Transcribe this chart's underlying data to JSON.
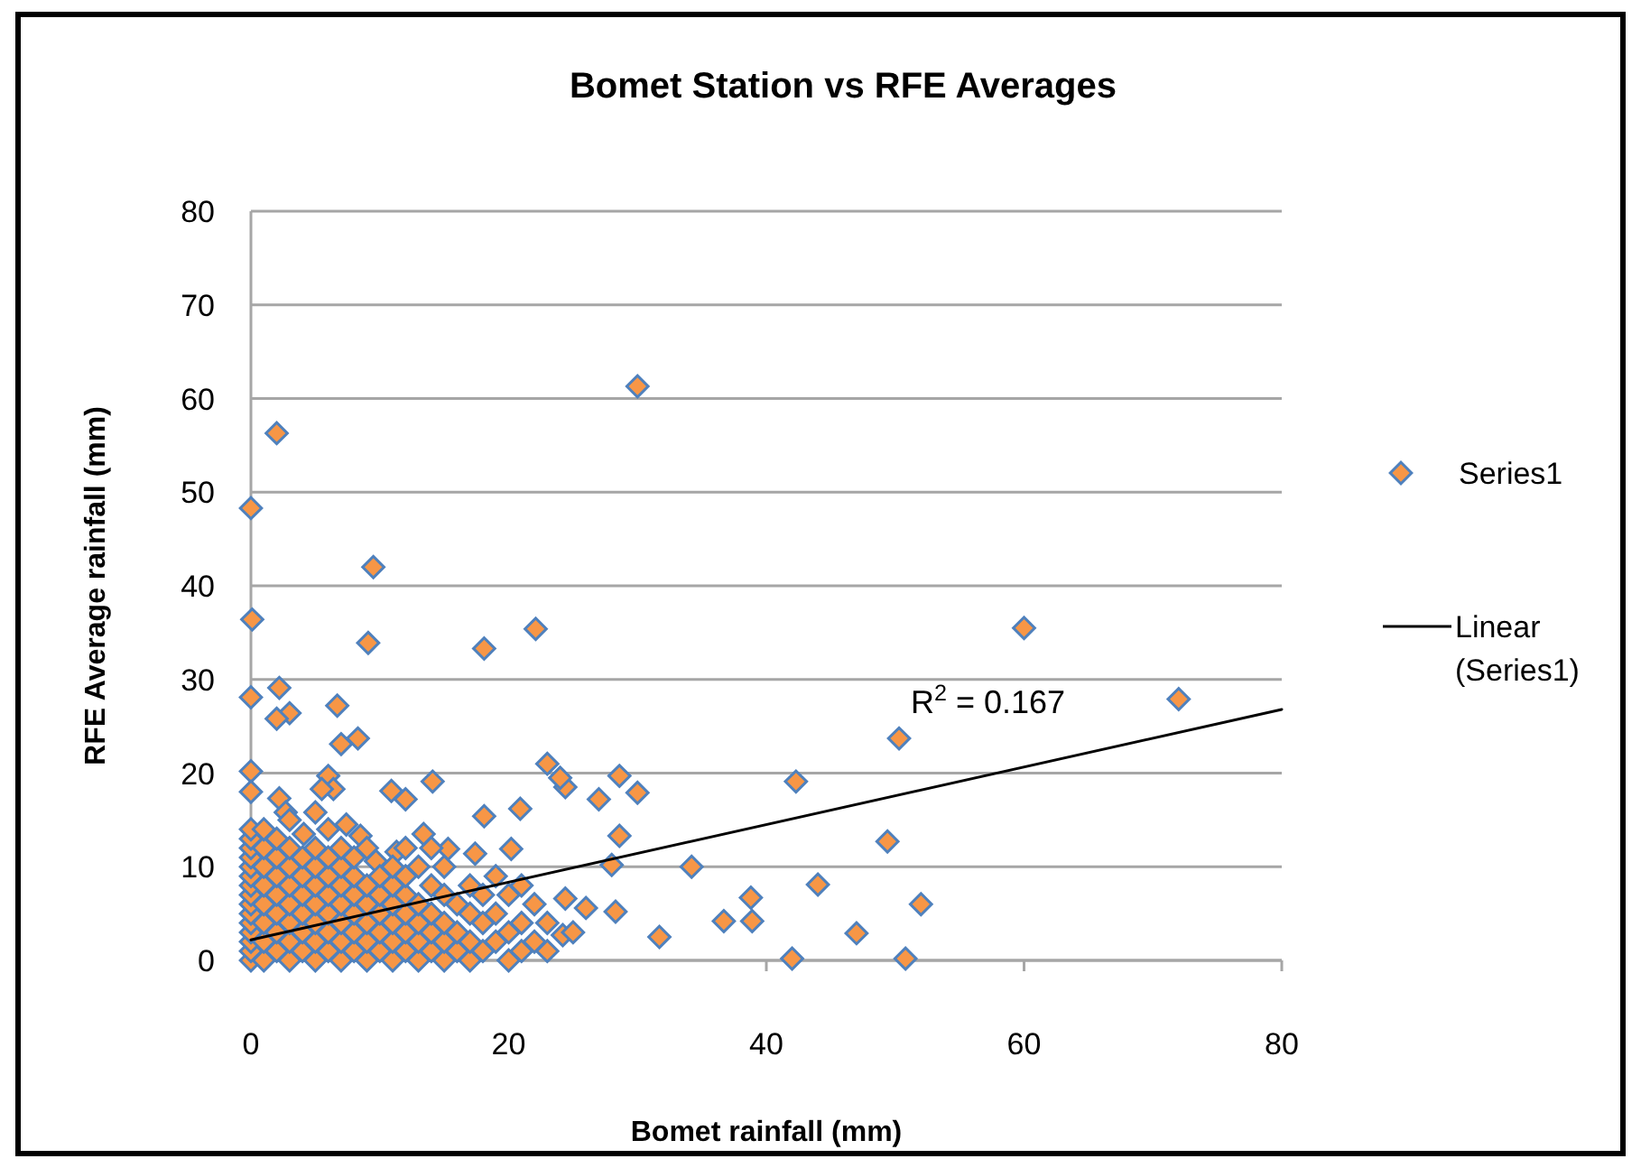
{
  "chart_data": {
    "type": "scatter",
    "title": "Bomet Station vs RFE Averages",
    "xlabel": "Bomet rainfall (mm)",
    "ylabel": "RFE Average rainfall (mm)",
    "xlim": [
      0,
      80
    ],
    "xticks": [
      0,
      20,
      40,
      60,
      80
    ],
    "ylim": [
      0,
      80
    ],
    "yticks": [
      0,
      10,
      20,
      30,
      40,
      50,
      60,
      70,
      80
    ],
    "grid": "y",
    "legend": "right",
    "marker": "diamond",
    "annotations": [
      "R$^{2}$ = 0.167"
    ],
    "series": [
      {
        "name": "Series1",
        "color": "#f79646",
        "x": [
          0,
          2,
          30,
          9.5,
          0.1,
          9.1,
          18.1,
          22.1,
          60,
          72,
          0,
          2.2,
          3,
          2,
          6.7,
          7,
          8.3,
          0,
          0,
          2.2,
          6,
          6.4,
          5.5,
          10.9,
          12,
          14.1,
          18.1,
          20.9,
          23,
          24.4,
          24,
          28.6,
          30,
          27,
          42.3,
          50.3,
          28.6,
          49.4,
          34.2,
          44,
          52,
          47,
          42,
          50.8,
          31.7,
          36.7,
          38.8,
          38.9,
          28,
          28.3,
          24.4,
          26,
          24.2,
          17.4,
          20.2,
          8.5,
          7.4,
          2.7,
          4.1,
          5,
          13.4,
          15.3,
          9.7,
          11.3,
          0,
          0,
          0,
          0,
          0,
          0,
          0,
          0,
          0,
          0,
          0,
          0,
          0,
          0,
          0,
          1,
          1,
          1,
          1,
          1,
          1,
          1,
          1,
          2,
          2,
          2,
          2,
          2,
          2,
          2,
          3,
          3,
          3,
          3,
          3,
          3,
          3,
          3,
          4,
          4,
          4,
          4,
          4,
          4,
          5,
          5,
          5,
          5,
          5,
          5,
          5,
          6,
          6,
          6,
          6,
          6,
          6,
          6,
          7,
          7,
          7,
          7,
          7,
          7,
          7,
          8,
          8,
          8,
          8,
          8,
          8,
          9,
          9,
          9,
          9,
          9,
          9,
          10,
          10,
          10,
          10,
          10,
          11,
          11,
          11,
          11,
          11,
          11,
          12,
          12,
          12,
          12,
          12,
          12,
          13,
          13,
          13,
          13,
          13,
          14,
          14,
          14,
          14,
          14,
          15,
          15,
          15,
          15,
          15,
          16,
          16,
          16,
          17,
          17,
          17,
          17,
          18,
          18,
          18,
          19,
          19,
          19,
          20,
          20,
          20,
          21,
          21,
          21,
          22,
          22,
          23,
          23,
          25
        ],
        "values": [
          48.3,
          56.3,
          61.3,
          42,
          36.4,
          33.9,
          33.3,
          35.4,
          35.5,
          27.9,
          28.1,
          29.1,
          26.4,
          25.8,
          27.2,
          23.1,
          23.7,
          20.2,
          18,
          17.3,
          19.7,
          18.3,
          18.3,
          18.1,
          17.2,
          19.1,
          15.4,
          16.2,
          21,
          18.5,
          19.5,
          19.7,
          17.9,
          17.2,
          19.1,
          23.7,
          13.3,
          12.7,
          10,
          8.1,
          6,
          2.9,
          0.2,
          0.2,
          2.5,
          4.2,
          6.7,
          4.2,
          10.2,
          5.2,
          6.6,
          5.6,
          2.7,
          11.4,
          11.9,
          13.3,
          14.5,
          15.8,
          13.5,
          15.8,
          13.5,
          11.9,
          10.6,
          11.6,
          0,
          1,
          2,
          3,
          4,
          5,
          6,
          7,
          8,
          9,
          10,
          11,
          12,
          13,
          14,
          0,
          2,
          4,
          6,
          8,
          10,
          12,
          14,
          1,
          3,
          5,
          7,
          9,
          11,
          13,
          0,
          2,
          4,
          6,
          8,
          10,
          12,
          15,
          1,
          3,
          5,
          7,
          9,
          11,
          0,
          2,
          4,
          6,
          8,
          10,
          12,
          1,
          3,
          5,
          7,
          9,
          11,
          14,
          0,
          2,
          4,
          6,
          8,
          10,
          12,
          1,
          3,
          5,
          7,
          9,
          11,
          0,
          2,
          4,
          6,
          8,
          12,
          1,
          3,
          5,
          7,
          9,
          0,
          2,
          4,
          6,
          8,
          10,
          1,
          3,
          5,
          7,
          9,
          12,
          0,
          2,
          4,
          6,
          10,
          1,
          3,
          5,
          8,
          12,
          0,
          2,
          4,
          7,
          10,
          1,
          3,
          6,
          0,
          2,
          5,
          8,
          1,
          4,
          7,
          2,
          5,
          9,
          0,
          3,
          7,
          1,
          4,
          8,
          2,
          6,
          1,
          4,
          3
        ]
      },
      {
        "name": "Linear (Series1)",
        "type": "line",
        "color": "#000000",
        "marker": "none",
        "line_style": "solid",
        "x": [
          0,
          80
        ],
        "values": [
          2.2,
          26.8
        ]
      }
    ]
  }
}
